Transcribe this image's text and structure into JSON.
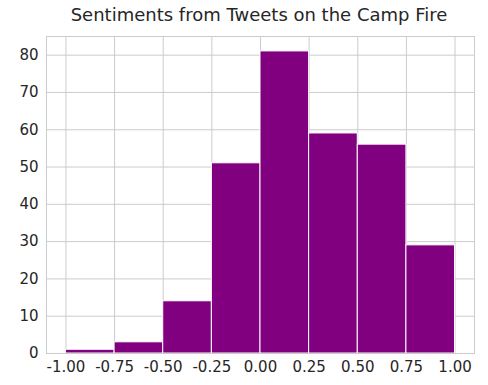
{
  "chart_data": {
    "type": "histogram",
    "title": "Sentiments from Tweets on the Camp Fire",
    "bins": [
      -1.0,
      -0.75,
      -0.5,
      -0.25,
      0.0,
      0.25,
      0.5,
      0.75,
      1.0
    ],
    "counts": [
      1,
      3,
      14,
      51,
      81,
      59,
      56,
      29
    ],
    "color": "#800080",
    "xlim": [
      -1.1,
      1.1
    ],
    "xticks": [
      {
        "value": -1.0,
        "label": "-1.00"
      },
      {
        "value": -0.75,
        "label": "-0.75"
      },
      {
        "value": -0.5,
        "label": "-0.50"
      },
      {
        "value": -0.25,
        "label": "-0.25"
      },
      {
        "value": 0.0,
        "label": "0.00"
      },
      {
        "value": 0.25,
        "label": "0.25"
      },
      {
        "value": 0.5,
        "label": "0.50"
      },
      {
        "value": 0.75,
        "label": "0.75"
      },
      {
        "value": 1.0,
        "label": "1.00"
      }
    ],
    "ylim": [
      0,
      85
    ],
    "yticks": [
      0,
      10,
      20,
      30,
      40,
      50,
      60,
      70,
      80
    ],
    "grid": true
  }
}
